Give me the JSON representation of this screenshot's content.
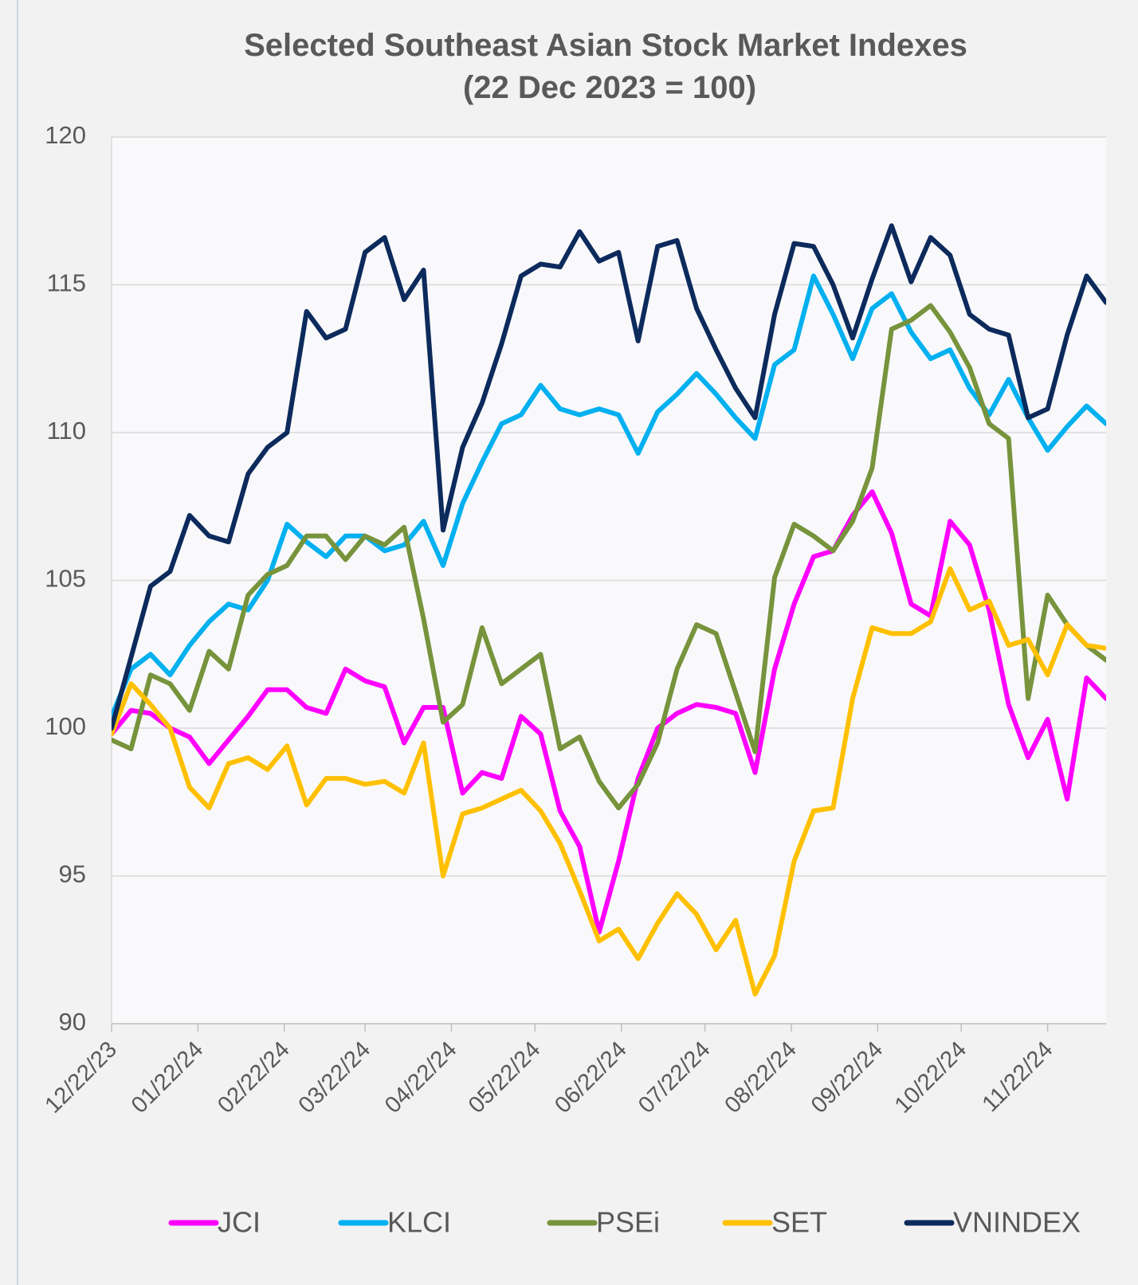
{
  "chart_data": {
    "type": "line",
    "title": "Selected Southeast Asian Stock Market Indexes",
    "subtitle": "(22 Dec 2023 = 100)",
    "x": [
      "2023-12-22",
      "2023-12-29",
      "2024-01-05",
      "2024-01-12",
      "2024-01-19",
      "2024-01-26",
      "2024-02-02",
      "2024-02-09",
      "2024-02-16",
      "2024-02-23",
      "2024-03-01",
      "2024-03-08",
      "2024-03-15",
      "2024-03-22",
      "2024-03-29",
      "2024-04-05",
      "2024-04-12",
      "2024-04-19",
      "2024-04-26",
      "2024-05-03",
      "2024-05-10",
      "2024-05-17",
      "2024-05-24",
      "2024-05-31",
      "2024-06-07",
      "2024-06-14",
      "2024-06-21",
      "2024-06-28",
      "2024-07-05",
      "2024-07-12",
      "2024-07-19",
      "2024-07-26",
      "2024-08-02",
      "2024-08-09",
      "2024-08-16",
      "2024-08-23",
      "2024-08-30",
      "2024-09-06",
      "2024-09-13",
      "2024-09-20",
      "2024-09-27",
      "2024-10-04",
      "2024-10-11",
      "2024-10-18",
      "2024-10-25",
      "2024-11-01",
      "2024-11-08",
      "2024-11-15",
      "2024-11-22",
      "2024-11-29",
      "2024-12-06",
      "2024-12-13"
    ],
    "series": [
      {
        "name": "JCI",
        "color": "#ff00ff",
        "values": [
          99.8,
          100.6,
          100.5,
          100,
          99.7,
          98.8,
          99.6,
          100.4,
          101.3,
          101.3,
          100.7,
          100.5,
          102,
          101.6,
          101.4,
          99.5,
          100.7,
          100.7,
          97.8,
          98.5,
          98.3,
          100.4,
          99.8,
          97.2,
          96,
          93.1,
          95.5,
          98.3,
          100,
          100.5,
          100.8,
          100.7,
          100.5,
          98.5,
          102,
          104.2,
          105.8,
          106,
          107.2,
          108,
          106.6,
          104.2,
          103.8,
          107,
          106.2,
          104,
          100.8,
          99,
          100.3,
          97.6,
          101.7,
          101
        ]
      },
      {
        "name": "KLCI",
        "color": "#00b0f0",
        "values": [
          100.4,
          102,
          102.5,
          101.8,
          102.8,
          103.6,
          104.2,
          104,
          105,
          106.9,
          106.3,
          105.8,
          106.5,
          106.5,
          106,
          106.2,
          107,
          105.5,
          107.6,
          109,
          110.3,
          110.6,
          111.6,
          110.8,
          110.6,
          110.8,
          110.6,
          109.3,
          110.7,
          111.3,
          112,
          111.3,
          110.5,
          109.8,
          112.3,
          112.8,
          115.3,
          114,
          112.5,
          114.2,
          114.7,
          113.4,
          112.5,
          112.8,
          111.5,
          110.6,
          111.8,
          110.5,
          109.4,
          110.2,
          110.9,
          110.3
        ]
      },
      {
        "name": "PSEi",
        "color": "#77933c",
        "values": [
          99.6,
          99.3,
          101.8,
          101.5,
          100.6,
          102.6,
          102,
          104.5,
          105.2,
          105.5,
          106.5,
          106.5,
          105.7,
          106.5,
          106.2,
          106.8,
          103.7,
          100.2,
          100.8,
          103.4,
          101.5,
          102,
          102.5,
          99.3,
          99.7,
          98.2,
          97.3,
          98.1,
          99.5,
          102,
          103.5,
          103.2,
          101.2,
          99.2,
          105.1,
          106.9,
          106.5,
          106,
          107,
          108.8,
          113.5,
          113.8,
          114.3,
          113.4,
          112.2,
          110.3,
          109.8,
          101,
          104.5,
          103.5,
          102.8,
          102.3
        ]
      },
      {
        "name": "SET",
        "color": "#ffc000",
        "values": [
          99.8,
          101.5,
          100.8,
          100,
          98,
          97.3,
          98.8,
          99,
          98.6,
          99.4,
          97.4,
          98.3,
          98.3,
          98.1,
          98.2,
          97.8,
          99.5,
          95,
          97.1,
          97.3,
          97.6,
          97.9,
          97.2,
          96.1,
          94.5,
          92.8,
          93.2,
          92.2,
          93.4,
          94.4,
          93.7,
          92.5,
          93.5,
          91,
          92.3,
          95.5,
          97.2,
          97.3,
          101,
          103.4,
          103.2,
          103.2,
          103.6,
          105.4,
          104,
          104.3,
          102.8,
          103,
          101.8,
          103.5,
          102.8,
          102.7
        ]
      },
      {
        "name": "VNINDEX",
        "color": "#0c2a5c",
        "values": [
          100,
          102.4,
          104.8,
          105.3,
          107.2,
          106.5,
          106.3,
          108.6,
          109.5,
          110,
          114.1,
          113.2,
          113.5,
          116.1,
          116.6,
          114.5,
          115.5,
          106.7,
          109.5,
          111,
          113,
          115.3,
          115.7,
          115.6,
          116.8,
          115.8,
          116.1,
          113.1,
          116.3,
          116.5,
          114.2,
          112.8,
          111.5,
          110.5,
          114,
          116.4,
          116.3,
          115,
          113.2,
          115.2,
          117,
          115.1,
          116.6,
          116,
          114,
          113.5,
          113.3,
          110.5,
          110.8,
          113.3,
          115.3,
          114.4
        ]
      }
    ],
    "xlim": [
      "2023-12-22",
      "2024-12-13"
    ],
    "xticks": [
      {
        "value": "2023-12-22",
        "label": "12/22/23"
      },
      {
        "value": "2024-01-22",
        "label": "01/22/24"
      },
      {
        "value": "2024-02-22",
        "label": "02/22/24"
      },
      {
        "value": "2024-03-22",
        "label": "03/22/24"
      },
      {
        "value": "2024-04-22",
        "label": "04/22/24"
      },
      {
        "value": "2024-05-22",
        "label": "05/22/24"
      },
      {
        "value": "2024-06-22",
        "label": "06/22/24"
      },
      {
        "value": "2024-07-22",
        "label": "07/22/24"
      },
      {
        "value": "2024-08-22",
        "label": "08/22/24"
      },
      {
        "value": "2024-09-22",
        "label": "09/22/24"
      },
      {
        "value": "2024-10-22",
        "label": "10/22/24"
      },
      {
        "value": "2024-11-22",
        "label": "11/22/24"
      }
    ],
    "ylim": [
      90,
      120
    ],
    "yticks": [
      90,
      95,
      100,
      105,
      110,
      115,
      120
    ],
    "grid": true,
    "legend": "bottom"
  }
}
